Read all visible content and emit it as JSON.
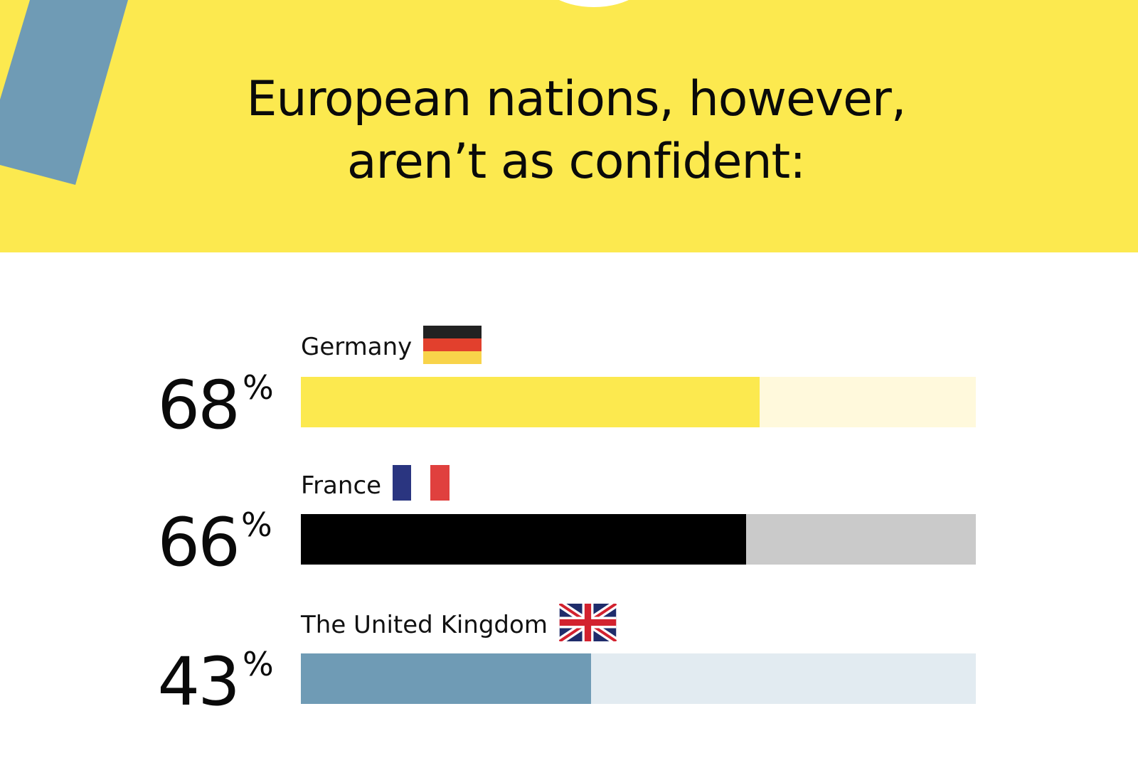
{
  "header": {
    "title_line1": "European nations, however,",
    "title_line2": "aren’t as confident:"
  },
  "colors": {
    "banner_bg": "#fce94f",
    "deco_stripe": "#6f9bb5",
    "deco_circle": "#ffffff"
  },
  "chart_data": {
    "type": "bar",
    "orientation": "horizontal",
    "title": "European nations, however, aren’t as confident:",
    "categories": [
      "Germany",
      "France",
      "The United Kingdom"
    ],
    "values": [
      68,
      66,
      43
    ],
    "value_labels": [
      "68",
      "66",
      "43"
    ],
    "unit": "%",
    "xlim": [
      0,
      100
    ],
    "bar_colors": [
      "#fce94f",
      "#000000",
      "#6f9bb5"
    ],
    "track_colors": [
      "#fff9dc",
      "#cacaca",
      "#e2ebf1"
    ],
    "flags": [
      "germany-flag",
      "france-flag",
      "uk-flag"
    ]
  }
}
